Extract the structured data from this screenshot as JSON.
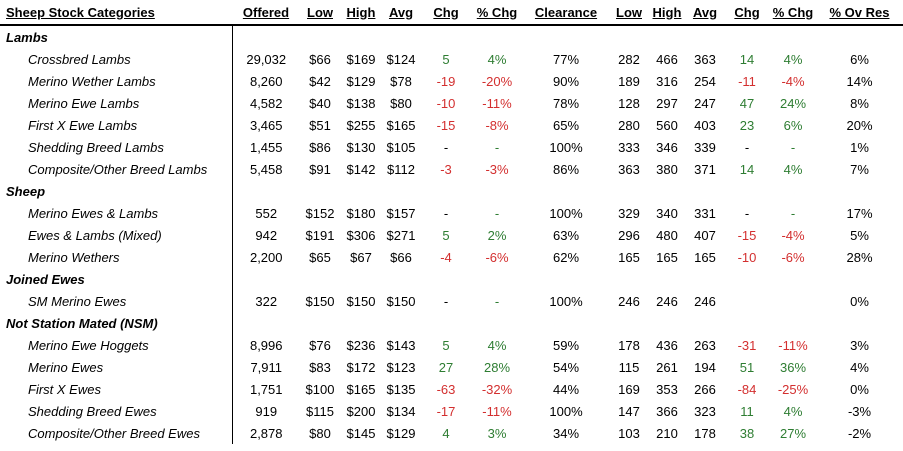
{
  "headers": [
    "Sheep Stock Categories",
    "Offered",
    "Low",
    "High",
    "Avg",
    "Chg",
    "% Chg",
    "Clearance",
    "Low",
    "High",
    "Avg",
    "Chg",
    "% Chg",
    "% Ov Res"
  ],
  "rows": [
    {
      "type": "group",
      "label": "Lambs"
    },
    {
      "type": "data",
      "label": "Crossbred Lambs",
      "offered": "29,032",
      "low": "$66",
      "high": "$169",
      "avg": "$124",
      "chg": "5",
      "pchg": "4%",
      "clearance": "77%",
      "low2": "282",
      "high2": "466",
      "avg2": "363",
      "chg2": "14",
      "pchg2": "4%",
      "ovres": "6%"
    },
    {
      "type": "data",
      "label": "Merino Wether Lambs",
      "offered": "8,260",
      "low": "$42",
      "high": "$129",
      "avg": "$78",
      "chg": "-19",
      "pchg": "-20%",
      "clearance": "90%",
      "low2": "189",
      "high2": "316",
      "avg2": "254",
      "chg2": "-11",
      "pchg2": "-4%",
      "ovres": "14%"
    },
    {
      "type": "data",
      "label": "Merino Ewe Lambs",
      "offered": "4,582",
      "low": "$40",
      "high": "$138",
      "avg": "$80",
      "chg": "-10",
      "pchg": "-11%",
      "clearance": "78%",
      "low2": "128",
      "high2": "297",
      "avg2": "247",
      "chg2": "47",
      "pchg2": "24%",
      "ovres": "8%"
    },
    {
      "type": "data",
      "label": "First X Ewe Lambs",
      "offered": "3,465",
      "low": "$51",
      "high": "$255",
      "avg": "$165",
      "chg": "-15",
      "pchg": "-8%",
      "clearance": "65%",
      "low2": "280",
      "high2": "560",
      "avg2": "403",
      "chg2": "23",
      "pchg2": "6%",
      "ovres": "20%"
    },
    {
      "type": "data",
      "label": "Shedding Breed Lambs",
      "offered": "1,455",
      "low": "$86",
      "high": "$130",
      "avg": "$105",
      "chg": "-",
      "pchg": "-",
      "clearance": "100%",
      "low2": "333",
      "high2": "346",
      "avg2": "339",
      "chg2": "-",
      "pchg2": "-",
      "ovres": "1%"
    },
    {
      "type": "data",
      "label": "Composite/Other Breed Lambs",
      "offered": "5,458",
      "low": "$91",
      "high": "$142",
      "avg": "$112",
      "chg": "-3",
      "pchg": "-3%",
      "clearance": "86%",
      "low2": "363",
      "high2": "380",
      "avg2": "371",
      "chg2": "14",
      "pchg2": "4%",
      "ovres": "7%"
    },
    {
      "type": "group",
      "label": "Sheep"
    },
    {
      "type": "data",
      "label": "Merino Ewes & Lambs",
      "offered": "552",
      "low": "$152",
      "high": "$180",
      "avg": "$157",
      "chg": "-",
      "pchg": "-",
      "clearance": "100%",
      "low2": "329",
      "high2": "340",
      "avg2": "331",
      "chg2": "-",
      "pchg2": "-",
      "ovres": "17%"
    },
    {
      "type": "data",
      "label": "Ewes & Lambs (Mixed)",
      "offered": "942",
      "low": "$191",
      "high": "$306",
      "avg": "$271",
      "chg": "5",
      "pchg": "2%",
      "clearance": "63%",
      "low2": "296",
      "high2": "480",
      "avg2": "407",
      "chg2": "-15",
      "pchg2": "-4%",
      "ovres": "5%"
    },
    {
      "type": "data",
      "label": "Merino Wethers",
      "offered": "2,200",
      "low": "$65",
      "high": "$67",
      "avg": "$66",
      "chg": "-4",
      "pchg": "-6%",
      "clearance": "62%",
      "low2": "165",
      "high2": "165",
      "avg2": "165",
      "chg2": "-10",
      "pchg2": "-6%",
      "ovres": "28%"
    },
    {
      "type": "group",
      "label": "Joined Ewes"
    },
    {
      "type": "data",
      "label": "SM Merino Ewes",
      "offered": "322",
      "low": "$150",
      "high": "$150",
      "avg": "$150",
      "chg": "-",
      "pchg": "-",
      "clearance": "100%",
      "low2": "246",
      "high2": "246",
      "avg2": "246",
      "chg2": "",
      "pchg2": "",
      "ovres": "0%"
    },
    {
      "type": "group",
      "label": "Not Station Mated (NSM)"
    },
    {
      "type": "data",
      "label": "Merino Ewe Hoggets",
      "offered": "8,996",
      "low": "$76",
      "high": "$236",
      "avg": "$143",
      "chg": "5",
      "pchg": "4%",
      "clearance": "59%",
      "low2": "178",
      "high2": "436",
      "avg2": "263",
      "chg2": "-31",
      "pchg2": "-11%",
      "ovres": "3%"
    },
    {
      "type": "data",
      "label": "Merino Ewes",
      "offered": "7,911",
      "low": "$83",
      "high": "$172",
      "avg": "$123",
      "chg": "27",
      "pchg": "28%",
      "clearance": "54%",
      "low2": "115",
      "high2": "261",
      "avg2": "194",
      "chg2": "51",
      "pchg2": "36%",
      "ovres": "4%"
    },
    {
      "type": "data",
      "label": "First X Ewes",
      "offered": "1,751",
      "low": "$100",
      "high": "$165",
      "avg": "$135",
      "chg": "-63",
      "pchg": "-32%",
      "clearance": "44%",
      "low2": "169",
      "high2": "353",
      "avg2": "266",
      "chg2": "-84",
      "pchg2": "-25%",
      "ovres": "0%"
    },
    {
      "type": "data",
      "label": "Shedding Breed Ewes",
      "offered": "919",
      "low": "$115",
      "high": "$200",
      "avg": "$134",
      "chg": "-17",
      "pchg": "-11%",
      "clearance": "100%",
      "low2": "147",
      "high2": "366",
      "avg2": "323",
      "chg2": "11",
      "pchg2": "4%",
      "ovres": "-3%"
    },
    {
      "type": "data",
      "label": "Composite/Other Breed Ewes",
      "offered": "2,878",
      "low": "$80",
      "high": "$145",
      "avg": "$129",
      "chg": "4",
      "pchg": "3%",
      "clearance": "34%",
      "low2": "103",
      "high2": "210",
      "avg2": "178",
      "chg2": "38",
      "pchg2": "27%",
      "ovres": "-2%"
    }
  ]
}
